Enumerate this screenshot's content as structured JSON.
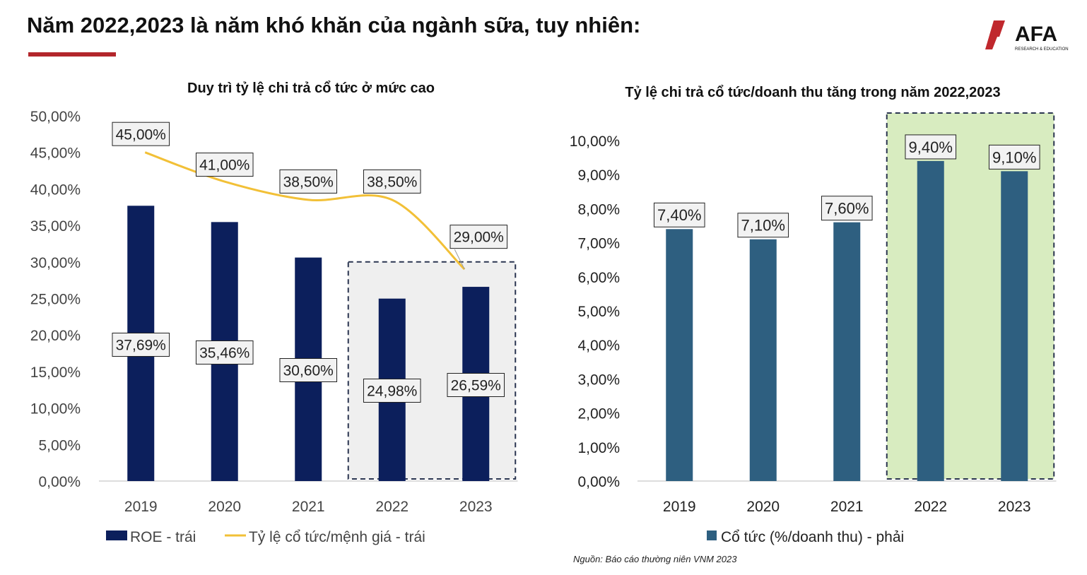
{
  "page": {
    "title": "Năm 2022,2023 là năm khó khăn của ngành sữa, tuy nhiên:",
    "accent_color": "#b3262b",
    "logo_text": "AFA",
    "logo_subtext": "RESEARCH & EDUCATION",
    "source": "Nguồn: Báo cáo thường niên VNM 2023"
  },
  "chart_data": [
    {
      "type": "bar",
      "title": "Duy trì tỷ lệ chi trả cổ tức ở mức cao",
      "categories": [
        "2019",
        "2020",
        "2021",
        "2022",
        "2023"
      ],
      "ylim": [
        0,
        50
      ],
      "yticks": [
        "0,00%",
        "5,00%",
        "10,00%",
        "15,00%",
        "20,00%",
        "25,00%",
        "30,00%",
        "35,00%",
        "40,00%",
        "45,00%",
        "50,00%"
      ],
      "series": [
        {
          "name": "ROE - trái",
          "type": "bar",
          "color": "#0c1f5c",
          "values": [
            37.69,
            35.46,
            30.6,
            24.98,
            26.59
          ],
          "labels": [
            "37,69%",
            "35,46%",
            "30,60%",
            "24,98%",
            "26,59%"
          ]
        },
        {
          "name": "Tỷ lệ cổ tức/mệnh giá - trái",
          "type": "line",
          "color": "#f2c037",
          "values": [
            45.0,
            41.0,
            38.5,
            38.5,
            29.0
          ],
          "labels": [
            "45,00%",
            "41,00%",
            "38,50%",
            "38,50%",
            "29,00%"
          ]
        }
      ],
      "highlight_categories": [
        "2022",
        "2023"
      ],
      "highlight_color": "#efefef",
      "grid": false,
      "legend": "bottom"
    },
    {
      "type": "bar",
      "title": "Tỷ lệ chi trả cổ tức/doanh thu tăng trong năm 2022,2023",
      "categories": [
        "2019",
        "2020",
        "2021",
        "2022",
        "2023"
      ],
      "ylim": [
        0,
        10
      ],
      "yticks": [
        "0,00%",
        "1,00%",
        "2,00%",
        "3,00%",
        "4,00%",
        "5,00%",
        "6,00%",
        "7,00%",
        "8,00%",
        "9,00%",
        "10,00%"
      ],
      "series": [
        {
          "name": "Cổ tức (%/doanh thu) - phải",
          "type": "bar",
          "color": "#2e5f80",
          "values": [
            7.4,
            7.1,
            7.6,
            9.4,
            9.1
          ],
          "labels": [
            "7,40%",
            "7,10%",
            "7,60%",
            "9,40%",
            "9,10%"
          ]
        }
      ],
      "highlight_categories": [
        "2022",
        "2023"
      ],
      "highlight_color": "#d8ecc0",
      "grid": false,
      "legend": "bottom"
    }
  ]
}
